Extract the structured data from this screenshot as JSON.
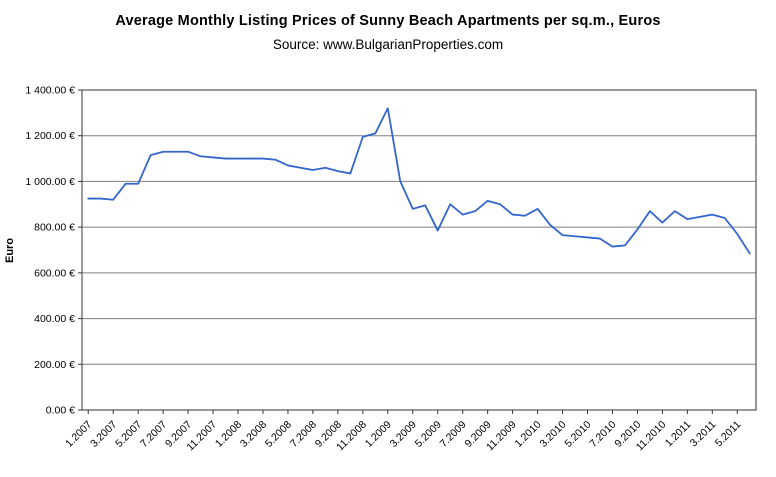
{
  "chart_data": {
    "type": "line",
    "title": "Average Monthly Listing Prices of Sunny Beach Apartments per sq.m., Euros",
    "subtitle": "Source: www.BulgarianProperties.com",
    "ylabel": "Euro",
    "ylim": [
      0,
      1400
    ],
    "ytick_step": 200,
    "ytick_labels": [
      "0.00 €",
      "200.00 €",
      "400.00 €",
      "600.00 €",
      "800.00 €",
      "1 000.00 €",
      "1 200.00 €",
      "1 400.00 €"
    ],
    "xtick_every": 2,
    "grid": true,
    "legend": "none",
    "line_color": "#3366cc",
    "grid_color": "#808080",
    "axis_color": "#333333",
    "x": [
      "1.2007",
      "2.2007",
      "3.2007",
      "4.2007",
      "5.2007",
      "6.2007",
      "7.2007",
      "8.2007",
      "9.2007",
      "10.2007",
      "11.2007",
      "12.2007",
      "1.2008",
      "2.2008",
      "3.2008",
      "4.2008",
      "5.2008",
      "6.2008",
      "7.2008",
      "8.2008",
      "9.2008",
      "10.2008",
      "11.2008",
      "12.2008",
      "1.2009",
      "2.2009",
      "3.2009",
      "4.2009",
      "5.2009",
      "6.2009",
      "7.2009",
      "8.2009",
      "9.2009",
      "10.2009",
      "11.2009",
      "12.2009",
      "1.2010",
      "2.2010",
      "3.2010",
      "4.2010",
      "5.2010",
      "6.2010",
      "7.2010",
      "8.2010",
      "9.2010",
      "10.2010",
      "11.2010",
      "12.2010",
      "1.2011",
      "2.2011",
      "3.2011",
      "4.2011",
      "5.2011",
      "6.2011"
    ],
    "values": [
      925,
      925,
      920,
      990,
      990,
      1115,
      1130,
      1130,
      1130,
      1110,
      1105,
      1100,
      1100,
      1100,
      1100,
      1095,
      1070,
      1060,
      1050,
      1060,
      1045,
      1035,
      1195,
      1210,
      1320,
      1000,
      880,
      895,
      785,
      900,
      855,
      870,
      915,
      900,
      855,
      850,
      880,
      810,
      765,
      760,
      755,
      750,
      715,
      720,
      790,
      870,
      820,
      870,
      835,
      845,
      855,
      840,
      770,
      685
    ]
  }
}
